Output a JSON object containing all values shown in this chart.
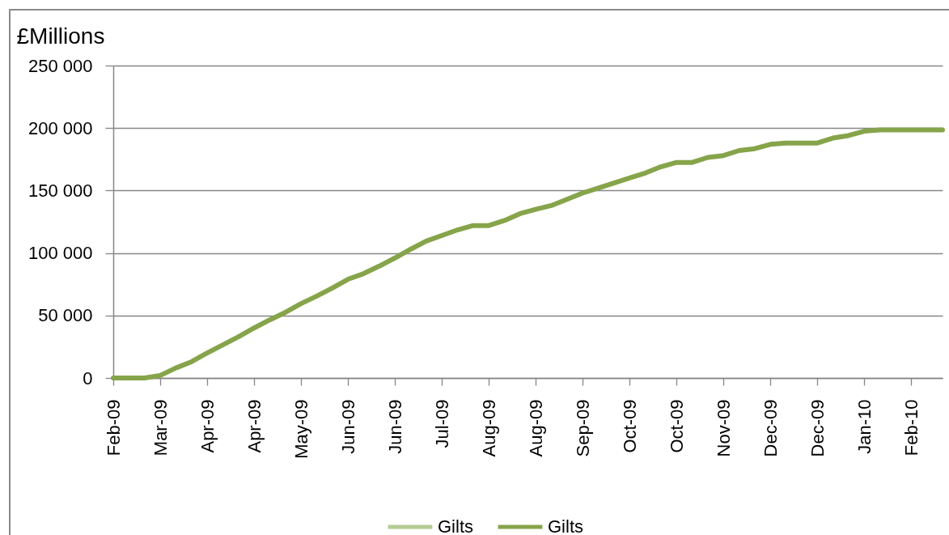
{
  "chart_data": {
    "type": "line",
    "ylabel": "£Millions",
    "categories": [
      "Feb-09",
      null,
      null,
      "Mar-09",
      null,
      null,
      "Apr-09",
      null,
      null,
      "Apr-09",
      null,
      null,
      "May-09",
      null,
      null,
      "Jun-09",
      null,
      null,
      "Jun-09",
      null,
      null,
      "Jul-09",
      null,
      null,
      "Aug-09",
      null,
      null,
      "Aug-09",
      null,
      null,
      "Sep-09",
      null,
      null,
      "Oct-09",
      null,
      null,
      "Oct-09",
      null,
      null,
      "Nov-09",
      null,
      null,
      "Dec-09",
      null,
      null,
      "Dec-09",
      null,
      null,
      "Jan-10",
      null,
      null,
      "Feb-10",
      null,
      null
    ],
    "series": [
      {
        "name": "Gilts",
        "color": "#b4cc95",
        "values": [
          null,
          null,
          null,
          null,
          null,
          null,
          null,
          null,
          null,
          null,
          null,
          null,
          null,
          null,
          null,
          null,
          null,
          null,
          null,
          null,
          null,
          null,
          null,
          null,
          null,
          null,
          null,
          null,
          null,
          null,
          null,
          null,
          null,
          null,
          null,
          null,
          null,
          null,
          null,
          null,
          null,
          null,
          null,
          null,
          null,
          null,
          null,
          null,
          null,
          null,
          null,
          null,
          null,
          null
        ]
      },
      {
        "name": "Gilts",
        "color": "#86a44a",
        "values": [
          0,
          0,
          0,
          2000,
          8000,
          13000,
          20000,
          26500,
          33000,
          40000,
          46500,
          52500,
          59500,
          65500,
          72000,
          79000,
          83500,
          89500,
          96000,
          103000,
          109500,
          114000,
          118500,
          122000,
          122000,
          126000,
          131500,
          135000,
          138000,
          143000,
          148000,
          152000,
          156000,
          160000,
          164000,
          169000,
          172500,
          172500,
          176500,
          178000,
          182000,
          183500,
          187000,
          188000,
          188000,
          188000,
          192000,
          194000,
          197500,
          198500,
          198500,
          198500,
          198500,
          198500
        ]
      }
    ],
    "ylim": [
      0,
      250000
    ],
    "yticks": [
      0,
      {
        "value": 50000,
        "label": "50 000"
      },
      {
        "value": 100000,
        "label": "100 000"
      },
      {
        "value": 150000,
        "label": "150 000"
      },
      {
        "value": 200000,
        "label": "200 000"
      },
      {
        "value": 250000,
        "label": "250 000"
      }
    ],
    "grid": "y",
    "legend": "bottom"
  }
}
